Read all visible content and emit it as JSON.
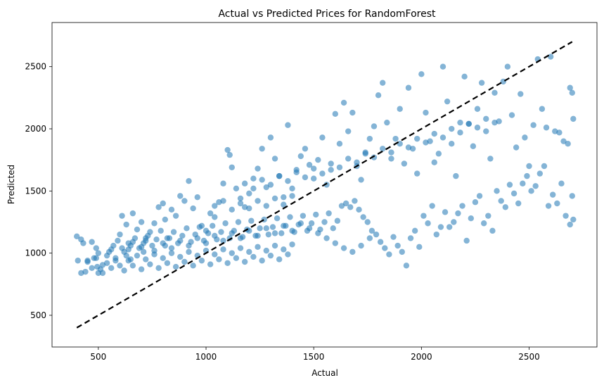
{
  "chart_data": {
    "type": "scatter",
    "title": "Actual vs Predicted Prices for RandomForest",
    "xlabel": "Actual",
    "ylabel": "Predicted",
    "xlim": [
      285,
      2815
    ],
    "ylim": [
      245,
      2855
    ],
    "x_ticks": [
      500,
      1000,
      1500,
      2000,
      2500
    ],
    "y_ticks": [
      500,
      1000,
      1500,
      2000,
      2500
    ],
    "grid": false,
    "point_color": "#1f77b4",
    "point_alpha": 0.55,
    "reference_line": {
      "style": "dashed",
      "color": "#000000",
      "from": [
        400,
        400
      ],
      "to": [
        2700,
        2700
      ]
    },
    "points": [
      [
        400,
        1135
      ],
      [
        405,
        940
      ],
      [
        420,
        1110
      ],
      [
        430,
        1080
      ],
      [
        440,
        850
      ],
      [
        450,
        940
      ],
      [
        470,
        1090
      ],
      [
        480,
        960
      ],
      [
        490,
        1040
      ],
      [
        495,
        890
      ],
      [
        500,
        840
      ],
      [
        510,
        870
      ],
      [
        520,
        905
      ],
      [
        540,
        980
      ],
      [
        560,
        1030
      ],
      [
        580,
        940
      ],
      [
        600,
        1150
      ],
      [
        610,
        1300
      ],
      [
        620,
        1010
      ],
      [
        630,
        1230
      ],
      [
        640,
        1080
      ],
      [
        650,
        950
      ],
      [
        660,
        1320
      ],
      [
        680,
        1190
      ],
      [
        700,
        1250
      ],
      [
        710,
        1010
      ],
      [
        720,
        1100
      ],
      [
        740,
        1170
      ],
      [
        760,
        1240
      ],
      [
        780,
        1370
      ],
      [
        800,
        1400
      ],
      [
        810,
        1270
      ],
      [
        820,
        1120
      ],
      [
        840,
        1350
      ],
      [
        860,
        1300
      ],
      [
        880,
        1460
      ],
      [
        900,
        1420
      ],
      [
        920,
        1580
      ],
      [
        940,
        1360
      ],
      [
        960,
        1450
      ],
      [
        980,
        1220
      ],
      [
        1000,
        1180
      ],
      [
        1020,
        1320
      ],
      [
        1040,
        1290
      ],
      [
        1060,
        1410
      ],
      [
        1080,
        1560
      ],
      [
        1100,
        1830
      ],
      [
        1110,
        1790
      ],
      [
        1120,
        1690
      ],
      [
        1140,
        1520
      ],
      [
        1160,
        1440
      ],
      [
        1180,
        1370
      ],
      [
        1200,
        1480
      ],
      [
        1220,
        1600
      ],
      [
        1240,
        1680
      ],
      [
        1260,
        1840
      ],
      [
        1280,
        1530
      ],
      [
        1300,
        1930
      ],
      [
        1320,
        1760
      ],
      [
        1340,
        1620
      ],
      [
        1360,
        1450
      ],
      [
        1380,
        2030
      ],
      [
        1400,
        1520
      ],
      [
        1420,
        1670
      ],
      [
        1440,
        1780
      ],
      [
        1460,
        1840
      ],
      [
        1480,
        1710
      ],
      [
        1500,
        1600
      ],
      [
        1520,
        1750
      ],
      [
        1540,
        1930
      ],
      [
        1560,
        1550
      ],
      [
        1580,
        1670
      ],
      [
        1600,
        2120
      ],
      [
        1620,
        1880
      ],
      [
        1640,
        2210
      ],
      [
        1660,
        1980
      ],
      [
        1680,
        2130
      ],
      [
        1700,
        1700
      ],
      [
        1720,
        1590
      ],
      [
        1740,
        1810
      ],
      [
        1760,
        1920
      ],
      [
        1780,
        2020
      ],
      [
        1800,
        2270
      ],
      [
        1820,
        2370
      ],
      [
        1840,
        2050
      ],
      [
        1860,
        1760
      ],
      [
        1880,
        1920
      ],
      [
        1900,
        2160
      ],
      [
        1920,
        1720
      ],
      [
        1940,
        2330
      ],
      [
        1960,
        1840
      ],
      [
        1980,
        1640
      ],
      [
        2000,
        2440
      ],
      [
        2020,
        2130
      ],
      [
        2040,
        1900
      ],
      [
        2060,
        1730
      ],
      [
        2080,
        1800
      ],
      [
        2100,
        2500
      ],
      [
        2120,
        2220
      ],
      [
        2140,
        1880
      ],
      [
        2160,
        1620
      ],
      [
        2180,
        2050
      ],
      [
        2200,
        2420
      ],
      [
        2220,
        2040
      ],
      [
        2240,
        1860
      ],
      [
        2260,
        2160
      ],
      [
        2280,
        2370
      ],
      [
        2300,
        1980
      ],
      [
        2320,
        1760
      ],
      [
        2340,
        2290
      ],
      [
        2360,
        2060
      ],
      [
        2380,
        2380
      ],
      [
        2400,
        2500
      ],
      [
        2420,
        2110
      ],
      [
        2440,
        1850
      ],
      [
        2460,
        2280
      ],
      [
        2480,
        1930
      ],
      [
        2500,
        1700
      ],
      [
        2520,
        2030
      ],
      [
        2540,
        2560
      ],
      [
        2560,
        2160
      ],
      [
        2580,
        2010
      ],
      [
        2600,
        2580
      ],
      [
        2620,
        1980
      ],
      [
        2640,
        1970
      ],
      [
        2660,
        1900
      ],
      [
        2680,
        1880
      ],
      [
        2690,
        2330
      ],
      [
        2700,
        2290
      ],
      [
        2705,
        2080
      ],
      [
        420,
        840
      ],
      [
        450,
        930
      ],
      [
        470,
        880
      ],
      [
        490,
        960
      ],
      [
        500,
        1000
      ],
      [
        520,
        840
      ],
      [
        540,
        920
      ],
      [
        560,
        880
      ],
      [
        580,
        960
      ],
      [
        600,
        900
      ],
      [
        620,
        860
      ],
      [
        640,
        940
      ],
      [
        660,
        900
      ],
      [
        680,
        980
      ],
      [
        700,
        870
      ],
      [
        720,
        950
      ],
      [
        740,
        910
      ],
      [
        760,
        990
      ],
      [
        780,
        880
      ],
      [
        800,
        960
      ],
      [
        820,
        920
      ],
      [
        840,
        1000
      ],
      [
        860,
        890
      ],
      [
        880,
        970
      ],
      [
        900,
        930
      ],
      [
        920,
        1010
      ],
      [
        940,
        900
      ],
      [
        960,
        980
      ],
      [
        980,
        940
      ],
      [
        1000,
        1020
      ],
      [
        1020,
        910
      ],
      [
        1040,
        990
      ],
      [
        1060,
        950
      ],
      [
        1080,
        1030
      ],
      [
        1100,
        920
      ],
      [
        1120,
        1000
      ],
      [
        1140,
        960
      ],
      [
        1160,
        1040
      ],
      [
        1180,
        930
      ],
      [
        1200,
        1010
      ],
      [
        1220,
        970
      ],
      [
        1240,
        1050
      ],
      [
        1260,
        940
      ],
      [
        1280,
        1020
      ],
      [
        1300,
        980
      ],
      [
        1320,
        1060
      ],
      [
        1340,
        950
      ],
      [
        1360,
        1030
      ],
      [
        1380,
        990
      ],
      [
        1400,
        1070
      ],
      [
        550,
        1010
      ],
      [
        570,
        1060
      ],
      [
        590,
        1100
      ],
      [
        610,
        1040
      ],
      [
        630,
        980
      ],
      [
        650,
        1060
      ],
      [
        670,
        1120
      ],
      [
        690,
        1040
      ],
      [
        710,
        1080
      ],
      [
        730,
        1140
      ],
      [
        750,
        1060
      ],
      [
        770,
        1110
      ],
      [
        790,
        1180
      ],
      [
        810,
        1060
      ],
      [
        830,
        1120
      ],
      [
        850,
        1170
      ],
      [
        870,
        1080
      ],
      [
        890,
        1140
      ],
      [
        910,
        1200
      ],
      [
        930,
        1090
      ],
      [
        950,
        1150
      ],
      [
        970,
        1210
      ],
      [
        990,
        1100
      ],
      [
        1010,
        1160
      ],
      [
        1030,
        1220
      ],
      [
        1050,
        1110
      ],
      [
        1070,
        1170
      ],
      [
        1090,
        1240
      ],
      [
        1110,
        1120
      ],
      [
        1130,
        1180
      ],
      [
        1150,
        1250
      ],
      [
        1170,
        1130
      ],
      [
        1190,
        1190
      ],
      [
        1210,
        1260
      ],
      [
        1230,
        1140
      ],
      [
        1250,
        1200
      ],
      [
        1270,
        1270
      ],
      [
        1290,
        1150
      ],
      [
        1310,
        1210
      ],
      [
        1330,
        1280
      ],
      [
        1350,
        1160
      ],
      [
        1370,
        1220
      ],
      [
        1390,
        1290
      ],
      [
        1410,
        1170
      ],
      [
        1430,
        1230
      ],
      [
        1450,
        1300
      ],
      [
        1470,
        1180
      ],
      [
        1490,
        1240
      ],
      [
        1510,
        1310
      ],
      [
        1530,
        1190
      ],
      [
        1550,
        1250
      ],
      [
        1570,
        1320
      ],
      [
        1590,
        1200
      ],
      [
        1610,
        1260
      ],
      [
        1630,
        1380
      ],
      [
        1650,
        1400
      ],
      [
        1670,
        1370
      ],
      [
        1690,
        1420
      ],
      [
        1710,
        1350
      ],
      [
        1730,
        1290
      ],
      [
        1750,
        1250
      ],
      [
        1770,
        1180
      ],
      [
        1790,
        1150
      ],
      [
        1810,
        1090
      ],
      [
        1830,
        1040
      ],
      [
        1850,
        990
      ],
      [
        1870,
        1130
      ],
      [
        1890,
        1060
      ],
      [
        1910,
        1010
      ],
      [
        1930,
        900
      ],
      [
        1950,
        1120
      ],
      [
        1970,
        1180
      ],
      [
        1990,
        1050
      ],
      [
        2010,
        1300
      ],
      [
        2030,
        1240
      ],
      [
        2050,
        1380
      ],
      [
        2070,
        1150
      ],
      [
        2090,
        1210
      ],
      [
        2110,
        1330
      ],
      [
        2130,
        1210
      ],
      [
        2150,
        1250
      ],
      [
        2170,
        1320
      ],
      [
        2190,
        1380
      ],
      [
        2210,
        1100
      ],
      [
        2230,
        1280
      ],
      [
        2250,
        1410
      ],
      [
        2270,
        1460
      ],
      [
        2290,
        1240
      ],
      [
        2310,
        1300
      ],
      [
        2330,
        1180
      ],
      [
        2350,
        1500
      ],
      [
        2370,
        1420
      ],
      [
        2390,
        1370
      ],
      [
        2410,
        1550
      ],
      [
        2430,
        1480
      ],
      [
        2450,
        1400
      ],
      [
        2470,
        1560
      ],
      [
        2490,
        1620
      ],
      [
        2510,
        1500
      ],
      [
        2530,
        1540
      ],
      [
        2550,
        1640
      ],
      [
        2570,
        1700
      ],
      [
        2590,
        1380
      ],
      [
        2610,
        1470
      ],
      [
        2630,
        1400
      ],
      [
        2650,
        1560
      ],
      [
        2670,
        1300
      ],
      [
        2690,
        1230
      ],
      [
        2700,
        1460
      ],
      [
        2705,
        1270
      ],
      [
        640,
        1030
      ],
      [
        660,
        1090
      ],
      [
        700,
        1050
      ],
      [
        720,
        1120
      ],
      [
        760,
        1020
      ],
      [
        800,
        1080
      ],
      [
        840,
        1040
      ],
      [
        880,
        1100
      ],
      [
        920,
        1060
      ],
      [
        960,
        1120
      ],
      [
        1000,
        1080
      ],
      [
        1040,
        1140
      ],
      [
        1080,
        1100
      ],
      [
        1120,
        1160
      ],
      [
        1160,
        1120
      ],
      [
        1200,
        1180
      ],
      [
        1240,
        1140
      ],
      [
        1280,
        1200
      ],
      [
        1320,
        1160
      ],
      [
        1360,
        1220
      ],
      [
        1400,
        1180
      ],
      [
        1440,
        1240
      ],
      [
        1480,
        1200
      ],
      [
        1520,
        1160
      ],
      [
        1560,
        1120
      ],
      [
        1600,
        1080
      ],
      [
        1640,
        1040
      ],
      [
        1680,
        1010
      ],
      [
        1720,
        1060
      ],
      [
        1760,
        1120
      ],
      [
        1040,
        1380
      ],
      [
        1080,
        1420
      ],
      [
        1120,
        1350
      ],
      [
        1160,
        1400
      ],
      [
        1200,
        1360
      ],
      [
        1240,
        1420
      ],
      [
        1280,
        1380
      ],
      [
        1320,
        1440
      ],
      [
        1360,
        1390
      ],
      [
        1400,
        1460
      ],
      [
        1180,
        1560
      ],
      [
        1220,
        1520
      ],
      [
        1260,
        1590
      ],
      [
        1300,
        1550
      ],
      [
        1340,
        1620
      ],
      [
        1380,
        1580
      ],
      [
        1420,
        1650
      ],
      [
        1460,
        1610
      ],
      [
        1500,
        1680
      ],
      [
        1540,
        1640
      ],
      [
        1580,
        1720
      ],
      [
        1620,
        1690
      ],
      [
        1660,
        1760
      ],
      [
        1700,
        1730
      ],
      [
        1740,
        1800
      ],
      [
        1780,
        1770
      ],
      [
        1820,
        1840
      ],
      [
        1860,
        1810
      ],
      [
        1900,
        1880
      ],
      [
        1940,
        1850
      ],
      [
        1980,
        1920
      ],
      [
        2020,
        1890
      ],
      [
        2060,
        1960
      ],
      [
        2100,
        1930
      ],
      [
        2140,
        2000
      ],
      [
        2180,
        1970
      ],
      [
        2220,
        2040
      ],
      [
        2260,
        2010
      ],
      [
        2300,
        2080
      ],
      [
        2340,
        2050
      ]
    ]
  }
}
